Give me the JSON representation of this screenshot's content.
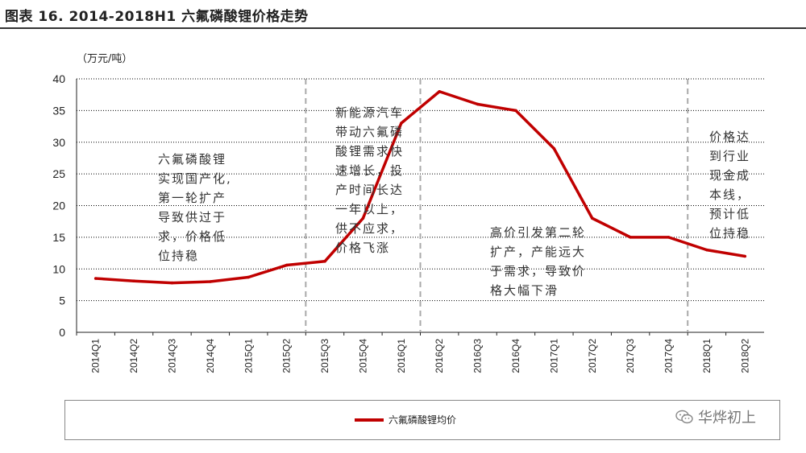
{
  "figure_title": "图表 16. 2014-2018H1 六氟磷酸锂价格走势",
  "unit_label": "（万元/吨）",
  "annotations": {
    "phase1": "六氟磷酸锂\n实现国产化,\n第一轮扩产\n导致供过于\n求，价格低\n位持稳",
    "phase2": "新能源汽车\n带动六氟磷\n酸锂需求快\n速增长，投\n产时间长达\n一年以上，\n供不应求，\n价格飞涨",
    "phase3": "高价引发第二轮\n扩产，产能远大\n于需求，导致价\n格大幅下滑",
    "phase4": "价格达\n到行业\n现金成\n本线，\n预计低\n位持稳"
  },
  "watermark": {
    "text": "华烨初上",
    "icon": "wechat-icon"
  },
  "colors": {
    "series": "#c00000",
    "grid": "#000000",
    "divider": "#aaaaaa"
  },
  "chart_data": {
    "type": "line",
    "categories": [
      "2014Q1",
      "2014Q2",
      "2014Q3",
      "2014Q4",
      "2015Q1",
      "2015Q2",
      "2015Q3",
      "2015Q4",
      "2016Q1",
      "2016Q2",
      "2016Q3",
      "2016Q4",
      "2017Q1",
      "2017Q2",
      "2017Q3",
      "2017Q4",
      "2018Q1",
      "2018Q2"
    ],
    "series": [
      {
        "name": "六氟磷酸锂均价",
        "values": [
          8.5,
          8.1,
          7.8,
          8.0,
          8.7,
          10.6,
          11.2,
          18,
          33,
          38,
          36,
          35,
          29,
          18,
          15,
          15,
          13,
          12
        ]
      }
    ],
    "yticks": [
      "0",
      "5",
      "10",
      "15",
      "20",
      "25",
      "30",
      "35",
      "40"
    ],
    "ylim": [
      0,
      40
    ],
    "grid": "horizontal dotted",
    "phase_dividers_after": [
      "2015Q2",
      "2016Q1",
      "2017Q4"
    ],
    "legend": "bottom"
  }
}
